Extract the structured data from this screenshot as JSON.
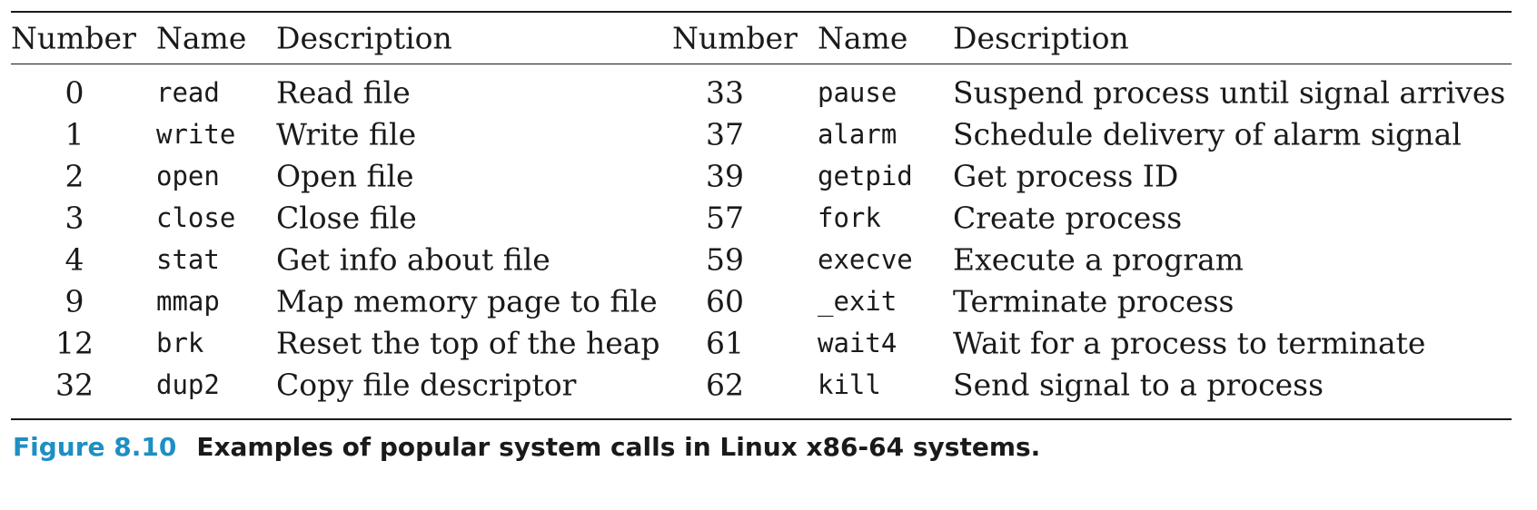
{
  "table": {
    "headers": [
      "Number",
      "Name",
      "Description",
      "Number",
      "Name",
      "Description"
    ],
    "rows": [
      {
        "num1": "0",
        "name1": "read",
        "desc1": "Read file",
        "num2": "33",
        "name2": "pause",
        "desc2": "Suspend process until signal arrives"
      },
      {
        "num1": "1",
        "name1": "write",
        "desc1": "Write file",
        "num2": "37",
        "name2": "alarm",
        "desc2": "Schedule delivery of alarm signal"
      },
      {
        "num1": "2",
        "name1": "open",
        "desc1": "Open file",
        "num2": "39",
        "name2": "getpid",
        "desc2": "Get process ID"
      },
      {
        "num1": "3",
        "name1": "close",
        "desc1": "Close file",
        "num2": "57",
        "name2": "fork",
        "desc2": "Create process"
      },
      {
        "num1": "4",
        "name1": "stat",
        "desc1": "Get info about file",
        "num2": "59",
        "name2": "execve",
        "desc2": "Execute a program"
      },
      {
        "num1": "9",
        "name1": "mmap",
        "desc1": "Map memory page to file",
        "num2": "60",
        "name2": "_exit",
        "desc2": "Terminate process"
      },
      {
        "num1": "12",
        "name1": "brk",
        "desc1": "Reset the top of the heap",
        "num2": "61",
        "name2": "wait4",
        "desc2": "Wait for a process to terminate"
      },
      {
        "num1": "32",
        "name1": "dup2",
        "desc1": "Copy file descriptor",
        "num2": "62",
        "name2": "kill",
        "desc2": "Send signal to a process"
      }
    ]
  },
  "caption": {
    "label": "Figure 8.10",
    "text": "Examples of popular system calls in Linux x86-64 systems.",
    "label_color": "#1e8fc3"
  }
}
